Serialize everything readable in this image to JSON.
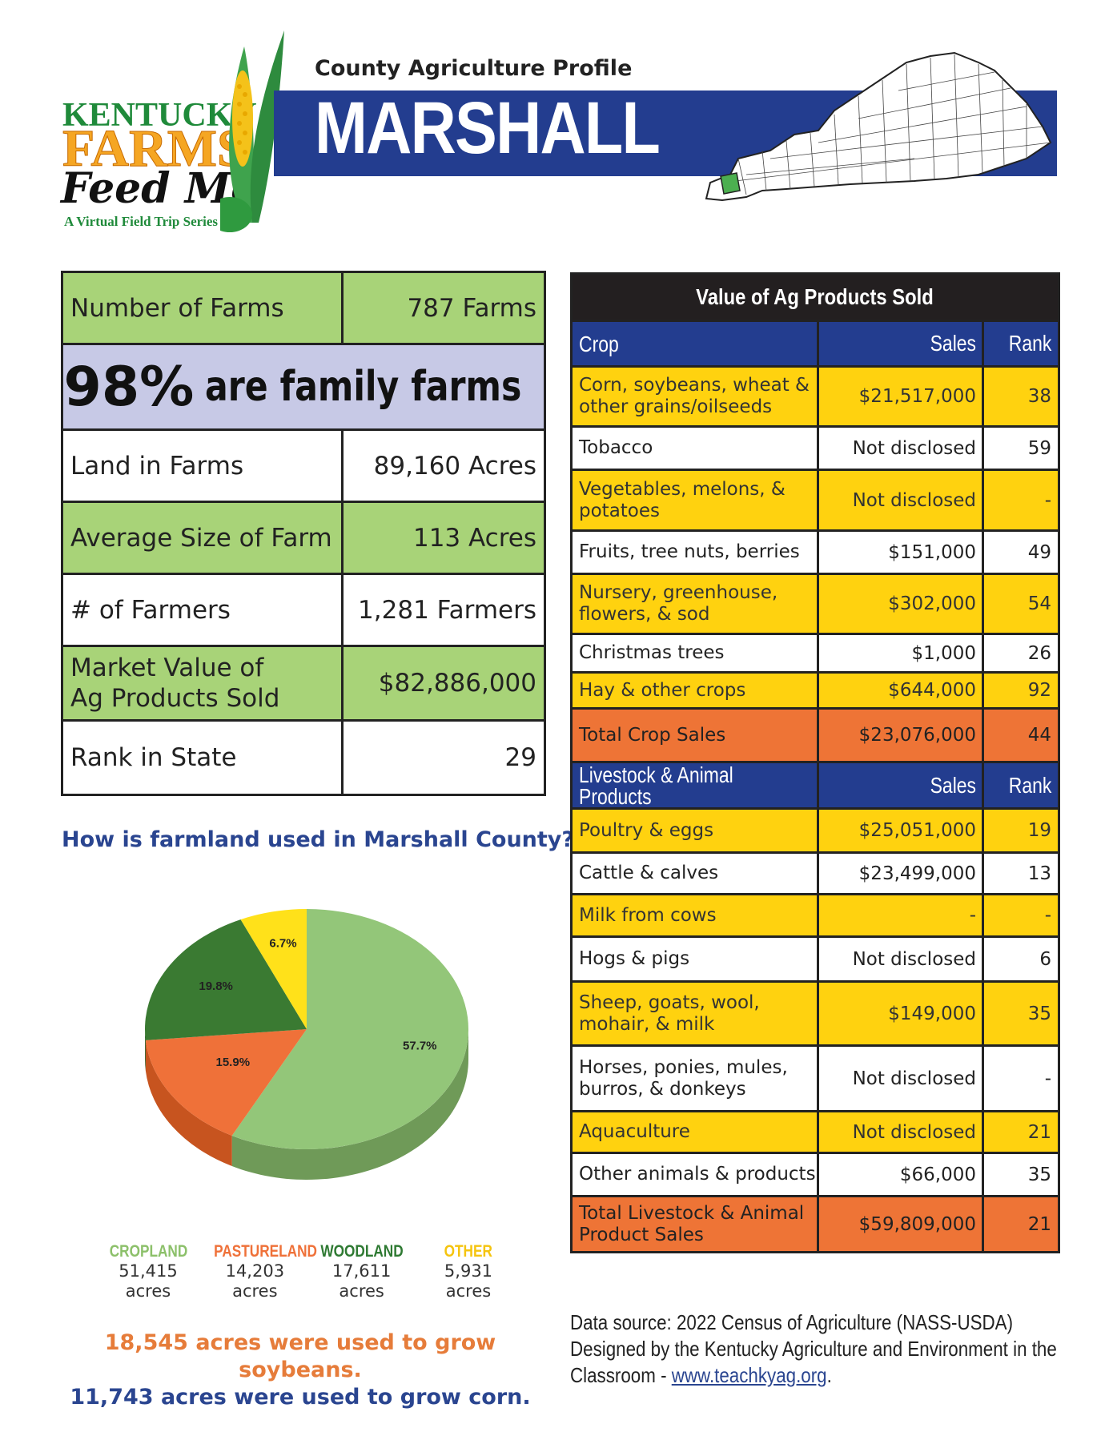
{
  "logo": {
    "line1": "KENTUCKY",
    "line2": "FARMS",
    "line3": "Feed Me",
    "tagline": "A Virtual Field Trip Series"
  },
  "header": {
    "subtitle": "County Agriculture Profile",
    "county": "MARSHALL"
  },
  "stats": {
    "farms_label": "Number of Farms",
    "farms_value": "787 Farms",
    "family_pct": "98%",
    "family_text": "are family farms",
    "land_label": "Land in Farms",
    "land_value": "89,160 Acres",
    "avg_label": "Average Size of Farm",
    "avg_value": "113 Acres",
    "farmers_label": "# of Farmers",
    "farmers_value": "1,281 Farmers",
    "market_label_1": "Market Value of",
    "market_label_2": "Ag Products Sold",
    "market_value": "$82,886,000",
    "rank_label": "Rank in State",
    "rank_value": "29"
  },
  "pie": {
    "question": "How is farmland used in Marshall County?",
    "slices": [
      {
        "label": "57.7%",
        "value": 57.7,
        "color": "#93c679",
        "side": "#6f9a58"
      },
      {
        "label": "15.9%",
        "value": 15.9,
        "color": "#ef7139",
        "side": "#c7541f"
      },
      {
        "label": "19.8%",
        "value": 19.8,
        "color": "#3a7a32",
        "side": "#2a5a24"
      },
      {
        "label": "6.7%",
        "value": 6.7,
        "color": "#ffe11a",
        "side": "#d4b600"
      }
    ]
  },
  "legend": [
    {
      "name": "CROPLAND",
      "acres": "51,415",
      "unit": "acres",
      "color": "#8cc06a"
    },
    {
      "name": "PASTURELAND",
      "acres": "14,203",
      "unit": "acres",
      "color": "#ef7139"
    },
    {
      "name": "WOODLAND",
      "acres": "17,611",
      "unit": "acres",
      "color": "#2f7a33"
    },
    {
      "name": "OTHER",
      "acres": "5,931",
      "unit": "acres",
      "color": "#f5c40f"
    }
  ],
  "facts": {
    "soybeans": "18,545 acres were used to grow soybeans.",
    "corn": "11,743 acres were used to grow corn."
  },
  "ag_table": {
    "title": "Value of Ag Products Sold",
    "crop_header": {
      "name": "Crop",
      "sales": "Sales",
      "rank": "Rank"
    },
    "crops": [
      {
        "name": "Corn, soybeans, wheat & other grains/oilseeds",
        "sales": "$21,517,000",
        "rank": "38"
      },
      {
        "name": "Tobacco",
        "sales": "Not disclosed",
        "rank": "59"
      },
      {
        "name": "Vegetables, melons, & potatoes",
        "sales": "Not disclosed",
        "rank": "-"
      },
      {
        "name": "Fruits, tree nuts, berries",
        "sales": "$151,000",
        "rank": "49"
      },
      {
        "name": "Nursery, greenhouse, flowers, & sod",
        "sales": "$302,000",
        "rank": "54"
      },
      {
        "name": "Christmas trees",
        "sales": "$1,000",
        "rank": "26"
      },
      {
        "name": "Hay & other crops",
        "sales": "$644,000",
        "rank": "92"
      }
    ],
    "crop_total": {
      "name": "Total Crop Sales",
      "sales": "$23,076,000",
      "rank": "44"
    },
    "livestock_header": {
      "name": "Livestock & Animal Products",
      "sales": "Sales",
      "rank": "Rank"
    },
    "livestock": [
      {
        "name": "Poultry & eggs",
        "sales": "$25,051,000",
        "rank": "19"
      },
      {
        "name": "Cattle & calves",
        "sales": "$23,499,000",
        "rank": "13"
      },
      {
        "name": "Milk from cows",
        "sales": "-",
        "rank": "-"
      },
      {
        "name": "Hogs & pigs",
        "sales": "Not disclosed",
        "rank": "6"
      },
      {
        "name": "Sheep, goats, wool, mohair, & milk",
        "sales": "$149,000",
        "rank": "35"
      },
      {
        "name": "Horses, ponies, mules, burros, & donkeys",
        "sales": "Not disclosed",
        "rank": "-"
      },
      {
        "name": "Aquaculture",
        "sales": "Not disclosed",
        "rank": "21"
      },
      {
        "name": "Other animals & products",
        "sales": "$66,000",
        "rank": "35"
      }
    ],
    "livestock_total": {
      "name": "Total Livestock & Animal Product Sales",
      "sales": "$59,809,000",
      "rank": "21"
    }
  },
  "source": {
    "line1": "Data source: 2022 Census of Agriculture (NASS-USDA)",
    "line2": "Designed by the Kentucky Agriculture and Environment in the",
    "line3_prefix": "Classroom - ",
    "link": "www.teachkyag.org",
    "line3_suffix": "."
  }
}
